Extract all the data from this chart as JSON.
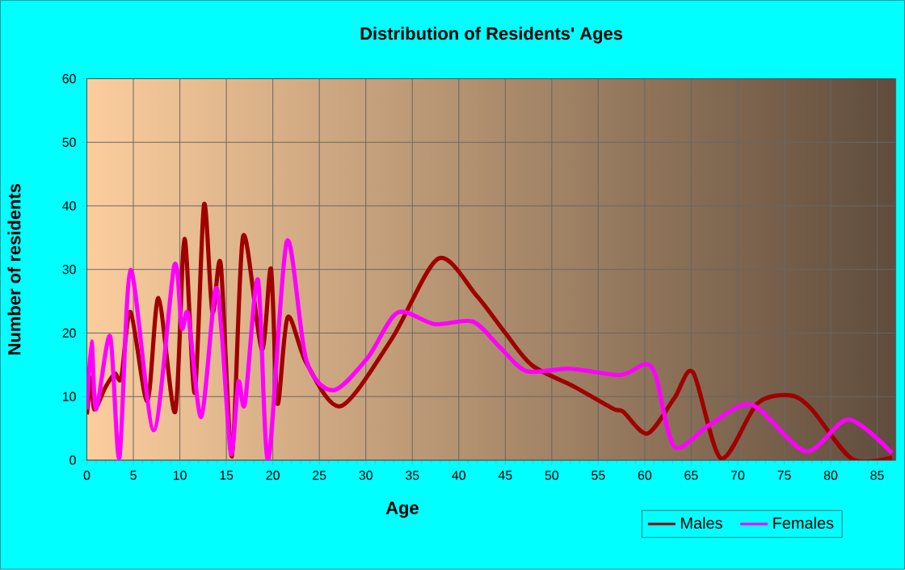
{
  "chart_data": {
    "type": "line",
    "title": "Distribution of Residents' Ages",
    "xlabel": "Age",
    "ylabel": "Number of residents",
    "xlim": [
      0,
      87
    ],
    "ylim": [
      0,
      60
    ],
    "xticks": [
      0,
      5,
      10,
      15,
      20,
      25,
      30,
      35,
      40,
      45,
      50,
      55,
      60,
      65,
      70,
      75,
      80,
      85
    ],
    "yticks": [
      0,
      10,
      20,
      30,
      40,
      50,
      60
    ],
    "grid": true,
    "legend": "bottom right",
    "marker": "none",
    "line_style": "solid",
    "series": [
      {
        "name": "Males",
        "color": "#a00000",
        "x": [
          0,
          0.5,
          0.8,
          2,
          3,
          3.7,
          4.7,
          6.5,
          7.7,
          9.5,
          10.5,
          11.6,
          12.6,
          13.5,
          14.4,
          15.6,
          16.8,
          18.8,
          19.8,
          20.5,
          21.6,
          23.6,
          27.3,
          32.8,
          37.8,
          41.9,
          45,
          47.9,
          52.5,
          56.6,
          57.7,
          60.3,
          63.2,
          65.2,
          68.2,
          72.1,
          75.6,
          77.9,
          82.3,
          86.6
        ],
        "values": [
          7.2,
          13,
          8,
          11.5,
          13.6,
          13,
          23.3,
          9.3,
          25.5,
          7.6,
          34.8,
          10.6,
          40.2,
          23.3,
          30.8,
          0.6,
          35.2,
          17.4,
          30.1,
          8.9,
          22.5,
          15.3,
          8.5,
          19.1,
          31.7,
          25.9,
          20,
          14.9,
          11.5,
          8.1,
          7.6,
          4.2,
          9.8,
          13.8,
          0.3,
          8.9,
          10.2,
          8.1,
          0.2,
          0.4
        ]
      },
      {
        "name": "Females",
        "color": "#ff00ff",
        "x": [
          0,
          0.5,
          1,
          2.5,
          3.5,
          4.7,
          7.2,
          9.4,
          10.2,
          10.9,
          12.3,
          13.8,
          14.5,
          15.5,
          16.3,
          17,
          18.4,
          19.5,
          21.5,
          23.6,
          26.5,
          30.2,
          33.4,
          37.4,
          41.5,
          44.4,
          47.3,
          51.9,
          57.4,
          60,
          61.2,
          63.2,
          66.9,
          71.5,
          77.3,
          81.9,
          86.6
        ],
        "values": [
          8,
          18.7,
          8,
          19.5,
          0.4,
          29.9,
          4.7,
          30.6,
          20.8,
          22.9,
          6.8,
          26.7,
          20,
          1,
          12.3,
          8.9,
          28.4,
          0,
          34.4,
          15.7,
          11,
          16.1,
          23.2,
          21.4,
          21.8,
          17.8,
          14,
          14.4,
          13.4,
          15.1,
          13.2,
          2.1,
          5.5,
          8.7,
          1.4,
          6.4,
          1.1
        ]
      }
    ]
  }
}
